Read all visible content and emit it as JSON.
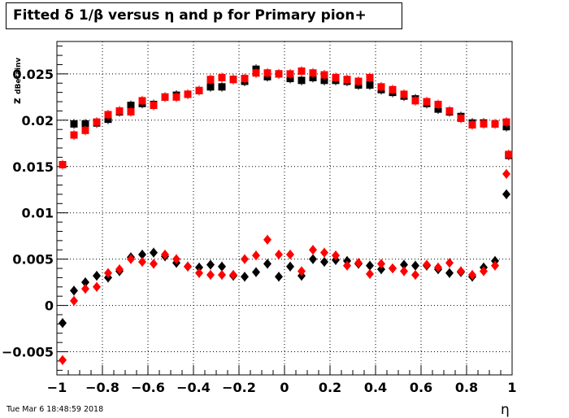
{
  "title": "Fitted δ 1/β versus η and p for Primary pion+",
  "timestamp": "Tue Mar  6 18:48:59 2018",
  "chart_data": {
    "type": "scatter",
    "title": "Fitted δ 1/β versus η and p for Primary pion+",
    "xlabel": "η",
    "ylabel": "z",
    "ylabel_sub": "dBetainv",
    "xlim": [
      -1,
      1
    ],
    "ylim": [
      -0.0075,
      0.0285
    ],
    "grid": true,
    "x_ticks": [
      -1,
      -0.8,
      -0.6,
      -0.4,
      -0.2,
      0,
      0.2,
      0.4,
      0.6,
      0.8,
      1
    ],
    "x_tick_labels": [
      "−1",
      "−0.8",
      "−0.6",
      "−0.4",
      "−0.2",
      "0",
      "0.2",
      "0.4",
      "0.6",
      "0.8",
      "1"
    ],
    "y_ticks": [
      -0.005,
      0,
      0.005,
      0.01,
      0.015,
      0.02,
      0.025
    ],
    "y_tick_labels": [
      "−0.005",
      "0",
      "0.005",
      "0.01",
      "0.015",
      "0.02",
      "0.025"
    ],
    "x": [
      -0.975,
      -0.925,
      -0.875,
      -0.825,
      -0.775,
      -0.725,
      -0.675,
      -0.625,
      -0.575,
      -0.525,
      -0.475,
      -0.425,
      -0.375,
      -0.325,
      -0.275,
      -0.225,
      -0.175,
      -0.125,
      -0.075,
      -0.025,
      0.025,
      0.075,
      0.125,
      0.175,
      0.225,
      0.275,
      0.325,
      0.375,
      0.425,
      0.475,
      0.525,
      0.575,
      0.625,
      0.675,
      0.725,
      0.775,
      0.825,
      0.875,
      0.925,
      0.975,
      0.985
    ],
    "series": [
      {
        "marker": "square",
        "color": "#000000",
        "values": [
          null,
          0.0196,
          0.0196,
          0.0197,
          0.0201,
          0.0209,
          0.0216,
          0.0218,
          0.0217,
          0.0225,
          0.0227,
          0.0228,
          0.0232,
          0.0236,
          0.0236,
          0.0244,
          0.0242,
          0.0255,
          0.0247,
          0.025,
          0.0245,
          0.0243,
          0.0246,
          0.0243,
          0.0243,
          0.0242,
          0.0238,
          0.0238,
          0.0233,
          0.023,
          0.0226,
          0.0223,
          0.0218,
          0.0212,
          0.0209,
          0.0204,
          0.0197,
          0.0197,
          0.0196,
          0.0193,
          0.0162
        ]
      },
      {
        "marker": "square",
        "color": "#ff0000",
        "values": [
          0.0152,
          0.0184,
          0.0189,
          0.0198,
          0.0206,
          0.021,
          0.0209,
          0.0221,
          0.0216,
          0.0225,
          0.0225,
          0.0228,
          0.0232,
          0.0244,
          0.0246,
          0.0244,
          0.0245,
          0.0251,
          0.0251,
          0.025,
          0.025,
          0.0253,
          0.0251,
          0.0249,
          0.0246,
          0.0244,
          0.0242,
          0.0246,
          0.0236,
          0.0233,
          0.0228,
          0.0221,
          0.022,
          0.0217,
          0.021,
          0.0202,
          0.0195,
          0.0196,
          0.0196,
          0.0198,
          0.0163
        ]
      },
      {
        "marker": "diamond",
        "color": "#000000",
        "values": [
          -0.0019,
          0.0016,
          0.0025,
          0.0032,
          0.003,
          0.0037,
          0.0052,
          0.0055,
          0.0057,
          0.0053,
          0.0046,
          0.0042,
          0.0041,
          0.0044,
          0.0042,
          0.0032,
          0.0031,
          0.0036,
          0.0045,
          0.0031,
          0.0042,
          0.0032,
          0.005,
          0.0047,
          0.0049,
          0.0048,
          0.0045,
          0.0043,
          0.0039,
          0.004,
          0.0044,
          0.0043,
          0.0043,
          0.0039,
          0.0035,
          0.0036,
          0.0031,
          0.0041,
          0.0048,
          0.012,
          null
        ]
      },
      {
        "marker": "diamond",
        "color": "#ff0000",
        "values": [
          -0.0059,
          0.0005,
          0.0018,
          0.002,
          0.0035,
          0.0039,
          0.005,
          0.0047,
          0.0045,
          0.0055,
          0.005,
          0.0042,
          0.0035,
          0.0033,
          0.0033,
          0.0033,
          0.005,
          0.0054,
          0.0071,
          0.0055,
          0.0055,
          0.0037,
          0.006,
          0.0057,
          0.0054,
          0.0043,
          0.0046,
          0.0034,
          0.0045,
          0.004,
          0.0037,
          0.0033,
          0.0044,
          0.0041,
          0.0046,
          0.0037,
          0.0033,
          0.0037,
          0.0043,
          0.0142,
          null
        ]
      }
    ]
  }
}
